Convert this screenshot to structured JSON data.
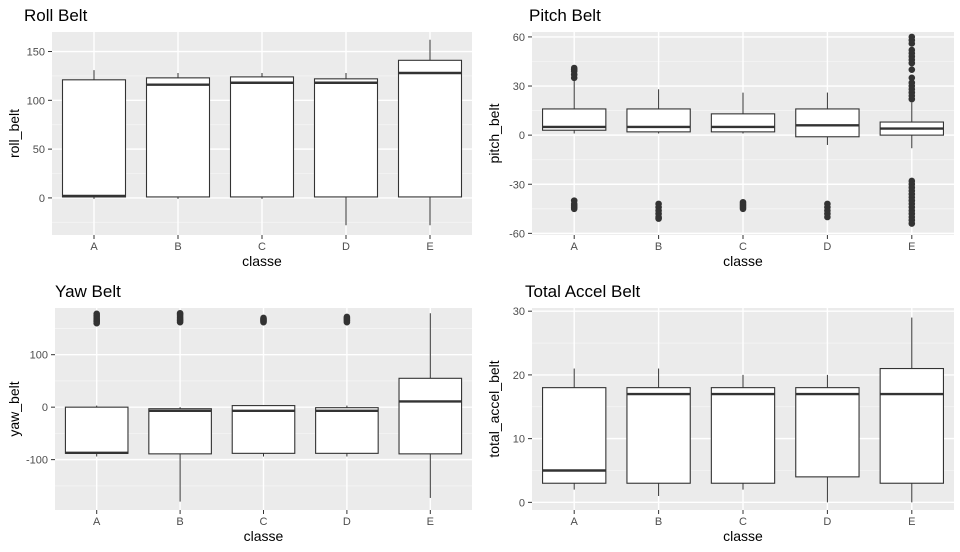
{
  "colors": {
    "panel_bg": "#ebebeb",
    "grid_major": "#ffffff",
    "grid_minor": "#f5f5f5",
    "box_fill": "#ffffff",
    "box_line": "#333333",
    "tick_text": "#4d4d4d",
    "text": "#000000"
  },
  "chart_data": [
    {
      "type": "box",
      "title": "Roll Belt",
      "xlabel": "classe",
      "ylabel": "roll_belt",
      "categories": [
        "A",
        "B",
        "C",
        "D",
        "E"
      ],
      "ylim": [
        -38,
        170
      ],
      "yticks": [
        0,
        50,
        100,
        150
      ],
      "ytick_labels": [
        "0",
        "50",
        "100",
        "150"
      ],
      "grid": true,
      "boxes": [
        {
          "class": "A",
          "min": -1,
          "q1": 1,
          "median": 2,
          "q3": 121,
          "max": 131,
          "outliers": []
        },
        {
          "class": "B",
          "min": -1,
          "q1": 1,
          "median": 116,
          "q3": 123,
          "max": 128,
          "outliers": []
        },
        {
          "class": "C",
          "min": -1,
          "q1": 1,
          "median": 118,
          "q3": 124,
          "max": 128,
          "outliers": []
        },
        {
          "class": "D",
          "min": -28,
          "q1": 1,
          "median": 118,
          "q3": 122,
          "max": 128,
          "outliers": []
        },
        {
          "class": "E",
          "min": -28,
          "q1": 1,
          "median": 128,
          "q3": 141,
          "max": 162,
          "outliers": []
        }
      ]
    },
    {
      "type": "box",
      "title": "Pitch Belt",
      "xlabel": "classe",
      "ylabel": "pitch_belt",
      "categories": [
        "A",
        "B",
        "C",
        "D",
        "E"
      ],
      "ylim": [
        -61,
        63
      ],
      "yticks": [
        -60,
        -30,
        0,
        30,
        60
      ],
      "ytick_labels": [
        "-60",
        "-30",
        "0",
        "30",
        "60"
      ],
      "grid": true,
      "boxes": [
        {
          "class": "A",
          "min": 1,
          "q1": 3,
          "median": 5,
          "q3": 16,
          "max": 34,
          "outliers": [
            35,
            37,
            39,
            40,
            41,
            -40,
            -42,
            -43,
            -44,
            -45
          ]
        },
        {
          "class": "B",
          "min": 1,
          "q1": 2,
          "median": 5,
          "q3": 16,
          "max": 28,
          "outliers": [
            -42,
            -44,
            -46,
            -48,
            -50,
            -51
          ]
        },
        {
          "class": "C",
          "min": 1,
          "q1": 2,
          "median": 5,
          "q3": 13,
          "max": 26,
          "outliers": [
            -41,
            -42,
            -43,
            -44,
            -45
          ]
        },
        {
          "class": "D",
          "min": -6,
          "q1": -1,
          "median": 6,
          "q3": 16,
          "max": 26,
          "outliers": [
            -42,
            -44,
            -46,
            -48,
            -50
          ]
        },
        {
          "class": "E",
          "min": -8,
          "q1": 0,
          "median": 4,
          "q3": 8,
          "max": 20,
          "outliers": [
            22,
            24,
            26,
            28,
            30,
            32,
            35,
            40,
            44,
            46,
            48,
            50,
            52,
            56,
            58,
            60,
            -28,
            -30,
            -32,
            -34,
            -36,
            -38,
            -40,
            -42,
            -44,
            -46,
            -48,
            -50,
            -52,
            -54
          ]
        }
      ]
    },
    {
      "type": "box",
      "title": "Yaw Belt",
      "xlabel": "classe",
      "ylabel": "yaw_belt",
      "categories": [
        "A",
        "B",
        "C",
        "D",
        "E"
      ],
      "ylim": [
        -196,
        189
      ],
      "yticks": [
        -100,
        0,
        100
      ],
      "ytick_labels": [
        "-100",
        "0",
        "100"
      ],
      "grid": true,
      "boxes": [
        {
          "class": "A",
          "min": -94,
          "q1": -88,
          "median": -87,
          "q3": 0,
          "max": 3,
          "outliers": [
            160,
            163,
            166,
            169,
            172,
            175,
            178
          ]
        },
        {
          "class": "B",
          "min": -180,
          "q1": -89,
          "median": -7,
          "q3": -3,
          "max": 0,
          "outliers": [
            162,
            165,
            168,
            171,
            174,
            177,
            179
          ]
        },
        {
          "class": "C",
          "min": -94,
          "q1": -88,
          "median": -7,
          "q3": 3,
          "max": 3,
          "outliers": [
            162,
            164,
            166,
            168,
            170
          ]
        },
        {
          "class": "D",
          "min": -94,
          "q1": -88,
          "median": -7,
          "q3": -1,
          "max": 3,
          "outliers": [
            162,
            165,
            168,
            170,
            172
          ]
        },
        {
          "class": "E",
          "min": -173,
          "q1": -89,
          "median": 11,
          "q3": 55,
          "max": 179,
          "outliers": []
        }
      ]
    },
    {
      "type": "box",
      "title": "Total Accel Belt",
      "xlabel": "classe",
      "ylabel": "total_accel_belt",
      "categories": [
        "A",
        "B",
        "C",
        "D",
        "E"
      ],
      "ylim": [
        -1.2,
        30.5
      ],
      "yticks": [
        0,
        10,
        20,
        30
      ],
      "ytick_labels": [
        "0",
        "10",
        "20",
        "30"
      ],
      "grid": true,
      "boxes": [
        {
          "class": "A",
          "min": 2,
          "q1": 3,
          "median": 5,
          "q3": 18,
          "max": 21,
          "outliers": []
        },
        {
          "class": "B",
          "min": 1,
          "q1": 3,
          "median": 17,
          "q3": 18,
          "max": 21,
          "outliers": []
        },
        {
          "class": "C",
          "min": 2,
          "q1": 3,
          "median": 17,
          "q3": 18,
          "max": 20,
          "outliers": []
        },
        {
          "class": "D",
          "min": 0,
          "q1": 4,
          "median": 17,
          "q3": 18,
          "max": 20,
          "outliers": []
        },
        {
          "class": "E",
          "min": 0,
          "q1": 3,
          "median": 17,
          "q3": 21,
          "max": 29,
          "outliers": []
        }
      ]
    }
  ]
}
